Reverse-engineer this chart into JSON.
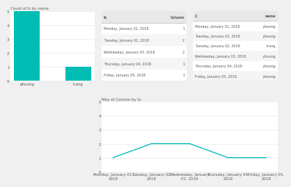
{
  "bar_chart": {
    "title": "Count of b by name",
    "categories": [
      "phuong",
      "trang"
    ],
    "values": [
      5,
      1
    ],
    "bar_color": "#00BDB4",
    "ylim": [
      0,
      5
    ],
    "yticks": [
      0,
      1,
      2,
      3,
      4,
      5
    ]
  },
  "table1": {
    "headers": [
      "ts",
      "Column"
    ],
    "rows": [
      [
        "Monday, January 01, 2018",
        "1"
      ],
      [
        "Tuesday, January 02, 2018",
        "2"
      ],
      [
        "Wednesday, January 03, 2018",
        "2"
      ],
      [
        "Thursday, January 04, 2018",
        "1"
      ],
      [
        "Friday, January 05, 2018",
        "1"
      ]
    ]
  },
  "table2": {
    "headers": [
      "2",
      "name"
    ],
    "rows": [
      [
        "Monday, January 01, 2018",
        "phuong"
      ],
      [
        "Tuesday, January 02, 2018",
        "phuong"
      ],
      [
        "Tuesday, January 02, 2018",
        "trang"
      ],
      [
        "Wednesday, January 03, 2018",
        "phuong"
      ],
      [
        "Thursday, January 04, 2018",
        "phuong"
      ],
      [
        "Friday, January 05, 2018",
        "phuong"
      ]
    ]
  },
  "line_chart": {
    "title": "Max of Column by ts",
    "x_labels": [
      "Monday, January 01,\n2018",
      "Tuesday, January 02,\n2018",
      "Wednesday, January\n03, 2018",
      "Thursday, January 04,\n2018",
      "Friday, January 05,\n2018"
    ],
    "values": [
      1,
      2,
      2,
      1,
      1
    ],
    "line_color": "#00BDB4",
    "ylim": [
      0,
      5
    ],
    "yticks": [
      0,
      1,
      2,
      3,
      4,
      5
    ]
  },
  "background_color": "#f0f0f0",
  "panel_color": "#ffffff",
  "text_color": "#555555",
  "grid_color": "#e0e0e0",
  "header_bg": "#e8e8e8",
  "alt_row_bg": "#f5f5f5"
}
